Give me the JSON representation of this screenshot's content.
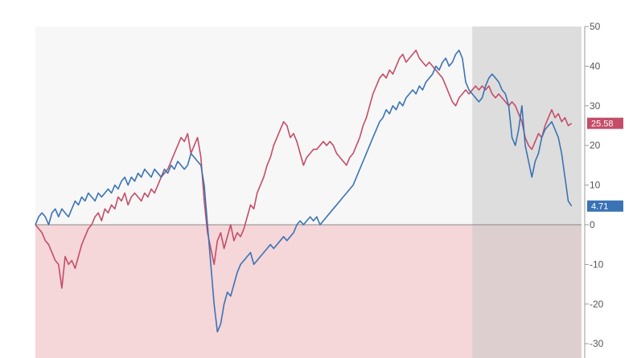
{
  "chart_data": {
    "type": "line",
    "title": "",
    "xlabel": "",
    "ylabel": "",
    "ylim": [
      -33,
      50
    ],
    "x_range": [
      0,
      330
    ],
    "grid": false,
    "y_axis_side": "right",
    "y_ticks": [
      50,
      40,
      30,
      20,
      10,
      0,
      -10,
      -20,
      -30
    ],
    "highlight_region_x": [
      264,
      330
    ],
    "colors": {
      "positive_band": "#f7f7f7",
      "negative_band": "#f5d6d9",
      "highlight": "#c8c8c8",
      "zero_line": "#888888"
    },
    "series": [
      {
        "color": "#c44d68",
        "last_value_label": "25.58",
        "points": [
          [
            0,
            0
          ],
          [
            2,
            -1
          ],
          [
            4,
            -2
          ],
          [
            6,
            -4
          ],
          [
            8,
            -5
          ],
          [
            10,
            -7
          ],
          [
            12,
            -9
          ],
          [
            14,
            -10
          ],
          [
            16,
            -16
          ],
          [
            18,
            -8
          ],
          [
            20,
            -10
          ],
          [
            22,
            -9
          ],
          [
            24,
            -11
          ],
          [
            26,
            -8
          ],
          [
            28,
            -5
          ],
          [
            30,
            -3
          ],
          [
            32,
            -1
          ],
          [
            34,
            0
          ],
          [
            36,
            2
          ],
          [
            38,
            3
          ],
          [
            40,
            1
          ],
          [
            42,
            4
          ],
          [
            44,
            3
          ],
          [
            46,
            5
          ],
          [
            48,
            4
          ],
          [
            50,
            7
          ],
          [
            52,
            6
          ],
          [
            54,
            8
          ],
          [
            56,
            5
          ],
          [
            58,
            7
          ],
          [
            60,
            8
          ],
          [
            62,
            7
          ],
          [
            64,
            6
          ],
          [
            66,
            8
          ],
          [
            68,
            7
          ],
          [
            70,
            9
          ],
          [
            72,
            8
          ],
          [
            74,
            10
          ],
          [
            76,
            12
          ],
          [
            78,
            13
          ],
          [
            80,
            14
          ],
          [
            82,
            16
          ],
          [
            84,
            18
          ],
          [
            86,
            20
          ],
          [
            88,
            22
          ],
          [
            90,
            21
          ],
          [
            92,
            23
          ],
          [
            94,
            18
          ],
          [
            96,
            20
          ],
          [
            98,
            22
          ],
          [
            100,
            17
          ],
          [
            102,
            6
          ],
          [
            104,
            -2
          ],
          [
            106,
            -6
          ],
          [
            108,
            -10
          ],
          [
            110,
            -4
          ],
          [
            112,
            -2
          ],
          [
            114,
            -6
          ],
          [
            116,
            -3
          ],
          [
            118,
            0
          ],
          [
            120,
            -4
          ],
          [
            122,
            -2
          ],
          [
            124,
            -3
          ],
          [
            126,
            -1
          ],
          [
            128,
            2
          ],
          [
            130,
            5
          ],
          [
            132,
            4
          ],
          [
            134,
            8
          ],
          [
            136,
            10
          ],
          [
            138,
            12
          ],
          [
            140,
            15
          ],
          [
            142,
            17
          ],
          [
            144,
            20
          ],
          [
            146,
            22
          ],
          [
            148,
            24
          ],
          [
            150,
            26
          ],
          [
            152,
            25
          ],
          [
            154,
            22
          ],
          [
            156,
            23
          ],
          [
            158,
            21
          ],
          [
            160,
            18
          ],
          [
            162,
            15
          ],
          [
            164,
            17
          ],
          [
            166,
            18
          ],
          [
            168,
            19
          ],
          [
            170,
            19
          ],
          [
            172,
            20
          ],
          [
            174,
            21
          ],
          [
            176,
            20
          ],
          [
            178,
            21
          ],
          [
            180,
            20
          ],
          [
            182,
            18
          ],
          [
            184,
            17
          ],
          [
            186,
            16
          ],
          [
            188,
            15
          ],
          [
            190,
            17
          ],
          [
            192,
            18
          ],
          [
            194,
            20
          ],
          [
            196,
            22
          ],
          [
            198,
            25
          ],
          [
            200,
            27
          ],
          [
            202,
            30
          ],
          [
            204,
            33
          ],
          [
            206,
            35
          ],
          [
            208,
            37
          ],
          [
            210,
            38
          ],
          [
            212,
            37
          ],
          [
            214,
            39
          ],
          [
            216,
            38
          ],
          [
            218,
            40
          ],
          [
            220,
            42
          ],
          [
            222,
            43
          ],
          [
            224,
            41
          ],
          [
            226,
            42
          ],
          [
            228,
            43
          ],
          [
            230,
            44
          ],
          [
            232,
            42
          ],
          [
            234,
            41
          ],
          [
            236,
            40
          ],
          [
            238,
            41
          ],
          [
            240,
            40
          ],
          [
            242,
            39
          ],
          [
            244,
            38
          ],
          [
            246,
            37
          ],
          [
            248,
            35
          ],
          [
            250,
            33
          ],
          [
            252,
            31
          ],
          [
            254,
            30
          ],
          [
            256,
            32
          ],
          [
            258,
            33
          ],
          [
            260,
            34
          ],
          [
            262,
            33
          ],
          [
            264,
            34
          ],
          [
            266,
            35
          ],
          [
            268,
            34
          ],
          [
            270,
            35
          ],
          [
            272,
            34
          ],
          [
            274,
            35
          ],
          [
            276,
            33
          ],
          [
            278,
            32
          ],
          [
            280,
            33
          ],
          [
            282,
            32
          ],
          [
            284,
            31
          ],
          [
            286,
            30
          ],
          [
            288,
            31
          ],
          [
            290,
            30
          ],
          [
            292,
            28
          ],
          [
            294,
            26
          ],
          [
            296,
            22
          ],
          [
            298,
            20
          ],
          [
            300,
            19
          ],
          [
            302,
            21
          ],
          [
            304,
            23
          ],
          [
            306,
            22
          ],
          [
            308,
            25
          ],
          [
            310,
            27
          ],
          [
            312,
            29
          ],
          [
            314,
            27
          ],
          [
            316,
            28
          ],
          [
            318,
            26
          ],
          [
            320,
            27
          ],
          [
            322,
            25
          ],
          [
            324,
            25.58
          ]
        ]
      },
      {
        "color": "#3a73b4",
        "last_value_label": "4.71",
        "points": [
          [
            0,
            0
          ],
          [
            2,
            2
          ],
          [
            4,
            3
          ],
          [
            6,
            2
          ],
          [
            8,
            0
          ],
          [
            10,
            3
          ],
          [
            12,
            4
          ],
          [
            14,
            2
          ],
          [
            16,
            4
          ],
          [
            18,
            3
          ],
          [
            20,
            2
          ],
          [
            22,
            4
          ],
          [
            24,
            6
          ],
          [
            26,
            5
          ],
          [
            28,
            7
          ],
          [
            30,
            6
          ],
          [
            32,
            8
          ],
          [
            34,
            7
          ],
          [
            36,
            6
          ],
          [
            38,
            8
          ],
          [
            40,
            7
          ],
          [
            42,
            8
          ],
          [
            44,
            9
          ],
          [
            46,
            8
          ],
          [
            48,
            10
          ],
          [
            50,
            9
          ],
          [
            52,
            11
          ],
          [
            54,
            12
          ],
          [
            56,
            10
          ],
          [
            58,
            12
          ],
          [
            60,
            11
          ],
          [
            62,
            13
          ],
          [
            64,
            12
          ],
          [
            66,
            14
          ],
          [
            68,
            13
          ],
          [
            70,
            12
          ],
          [
            72,
            14
          ],
          [
            74,
            13
          ],
          [
            76,
            12
          ],
          [
            78,
            14
          ],
          [
            80,
            13
          ],
          [
            82,
            15
          ],
          [
            84,
            14
          ],
          [
            86,
            16
          ],
          [
            88,
            15
          ],
          [
            90,
            14
          ],
          [
            92,
            15
          ],
          [
            94,
            18
          ],
          [
            96,
            17
          ],
          [
            98,
            16
          ],
          [
            100,
            15
          ],
          [
            102,
            10
          ],
          [
            104,
            0
          ],
          [
            106,
            -10
          ],
          [
            108,
            -20
          ],
          [
            110,
            -27
          ],
          [
            112,
            -25
          ],
          [
            114,
            -20
          ],
          [
            116,
            -17
          ],
          [
            118,
            -18
          ],
          [
            120,
            -15
          ],
          [
            122,
            -12
          ],
          [
            124,
            -10
          ],
          [
            126,
            -9
          ],
          [
            128,
            -8
          ],
          [
            130,
            -7
          ],
          [
            132,
            -10
          ],
          [
            134,
            -9
          ],
          [
            136,
            -8
          ],
          [
            138,
            -7
          ],
          [
            140,
            -6
          ],
          [
            142,
            -5
          ],
          [
            144,
            -6
          ],
          [
            146,
            -5
          ],
          [
            148,
            -4
          ],
          [
            150,
            -3
          ],
          [
            152,
            -4
          ],
          [
            154,
            -3
          ],
          [
            156,
            -2
          ],
          [
            158,
            0
          ],
          [
            160,
            1
          ],
          [
            162,
            0
          ],
          [
            164,
            1
          ],
          [
            166,
            2
          ],
          [
            168,
            1
          ],
          [
            170,
            2
          ],
          [
            172,
            0
          ],
          [
            174,
            1
          ],
          [
            176,
            2
          ],
          [
            178,
            3
          ],
          [
            180,
            4
          ],
          [
            182,
            5
          ],
          [
            184,
            6
          ],
          [
            186,
            7
          ],
          [
            188,
            8
          ],
          [
            190,
            9
          ],
          [
            192,
            10
          ],
          [
            194,
            12
          ],
          [
            196,
            14
          ],
          [
            198,
            16
          ],
          [
            200,
            18
          ],
          [
            202,
            20
          ],
          [
            204,
            22
          ],
          [
            206,
            24
          ],
          [
            208,
            26
          ],
          [
            210,
            27
          ],
          [
            212,
            29
          ],
          [
            214,
            28
          ],
          [
            216,
            30
          ],
          [
            218,
            29
          ],
          [
            220,
            31
          ],
          [
            222,
            30
          ],
          [
            224,
            32
          ],
          [
            226,
            33
          ],
          [
            228,
            34
          ],
          [
            230,
            33
          ],
          [
            232,
            35
          ],
          [
            234,
            34
          ],
          [
            236,
            36
          ],
          [
            238,
            37
          ],
          [
            240,
            38
          ],
          [
            242,
            40
          ],
          [
            244,
            39
          ],
          [
            246,
            41
          ],
          [
            248,
            42
          ],
          [
            250,
            40
          ],
          [
            252,
            41
          ],
          [
            254,
            43
          ],
          [
            256,
            44
          ],
          [
            258,
            42
          ],
          [
            260,
            36
          ],
          [
            262,
            34
          ],
          [
            264,
            33
          ],
          [
            266,
            32
          ],
          [
            268,
            31
          ],
          [
            270,
            32
          ],
          [
            272,
            35
          ],
          [
            274,
            37
          ],
          [
            276,
            38
          ],
          [
            278,
            37
          ],
          [
            280,
            36
          ],
          [
            282,
            34
          ],
          [
            284,
            33
          ],
          [
            286,
            30
          ],
          [
            288,
            22
          ],
          [
            290,
            20
          ],
          [
            292,
            24
          ],
          [
            294,
            30
          ],
          [
            296,
            20
          ],
          [
            298,
            16
          ],
          [
            300,
            12
          ],
          [
            302,
            16
          ],
          [
            304,
            18
          ],
          [
            306,
            22
          ],
          [
            308,
            24
          ],
          [
            310,
            25
          ],
          [
            312,
            26
          ],
          [
            314,
            24
          ],
          [
            316,
            22
          ],
          [
            318,
            18
          ],
          [
            320,
            12
          ],
          [
            322,
            6
          ],
          [
            324,
            4.71
          ]
        ]
      }
    ]
  }
}
